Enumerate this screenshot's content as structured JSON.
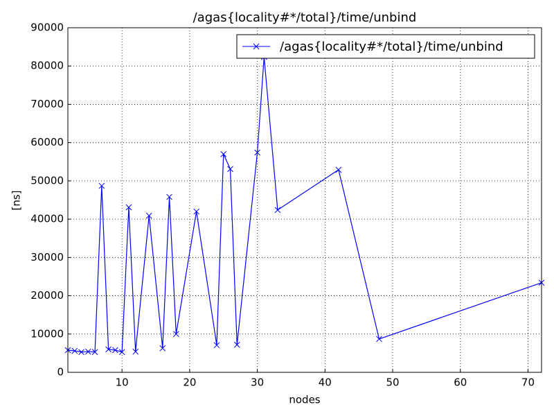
{
  "chart_data": {
    "type": "line",
    "title": "/agas{locality#*/total}/time/unbind",
    "x_label": "nodes",
    "y_label": "[ns]",
    "x": [
      2,
      3,
      4,
      5,
      6,
      7,
      8,
      9,
      10,
      11,
      12,
      14,
      16,
      17,
      18,
      21,
      24,
      25,
      26,
      27,
      30,
      31,
      33,
      42,
      48,
      72
    ],
    "series": [
      {
        "name": "/agas{locality#*/total}/time/unbind",
        "color": "#0000ff",
        "values": [
          5800,
          5600,
          5300,
          5400,
          5300,
          48700,
          6000,
          5800,
          5300,
          43100,
          5400,
          40900,
          6300,
          45800,
          10000,
          42000,
          7100,
          57000,
          53100,
          7200,
          57400,
          82400,
          42400,
          52900,
          8700,
          23400
        ]
      }
    ],
    "xlim": [
      2,
      72
    ],
    "xticks": [
      10,
      20,
      30,
      40,
      50,
      60,
      70
    ],
    "ylim": [
      0,
      90000
    ],
    "yticks": [
      0,
      10000,
      20000,
      30000,
      40000,
      50000,
      60000,
      70000,
      80000,
      90000
    ],
    "grid": true,
    "legend": "upper right"
  }
}
